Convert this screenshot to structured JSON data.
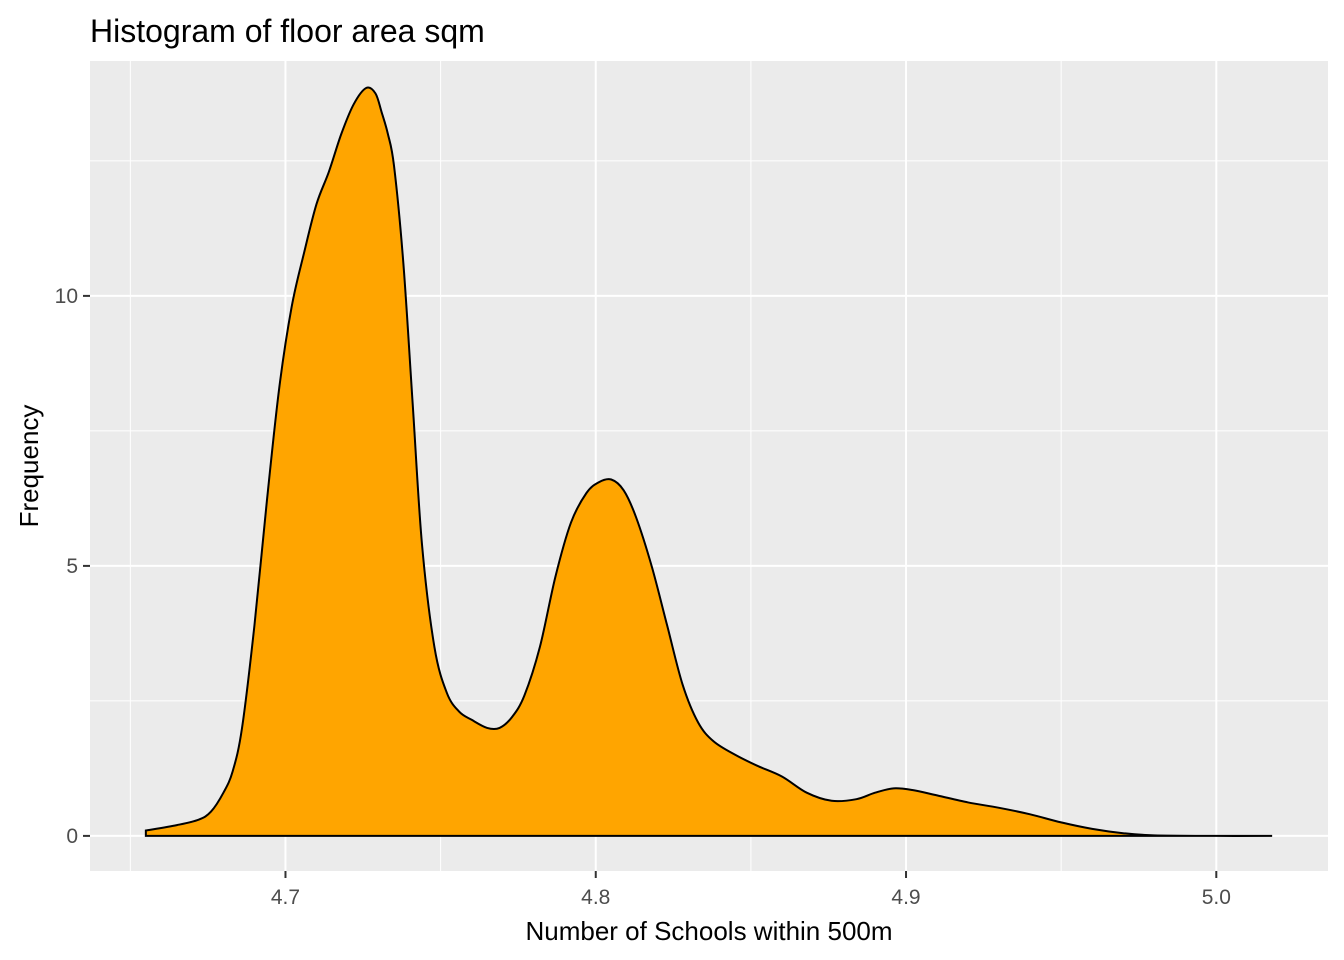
{
  "chart_data": {
    "type": "area",
    "title": "Histogram of floor area sqm",
    "xlabel": "Number of Schools within 500m",
    "ylabel": "Frequency",
    "xlim": [
      4.637,
      5.036
    ],
    "ylim": [
      -0.65,
      14.35
    ],
    "x_ticks": [
      4.7,
      4.8,
      4.9,
      5.0
    ],
    "x_tick_labels": [
      "4.7",
      "4.8",
      "4.9",
      "5.0"
    ],
    "y_ticks": [
      0,
      5,
      10
    ],
    "y_tick_labels": [
      "0",
      "5",
      "10"
    ],
    "grid": true,
    "legend": "none",
    "colors": {
      "panel": "#ebebeb",
      "grid": "#ffffff",
      "fill": "#ffa500",
      "outline": "#000000",
      "tick": "#333333"
    },
    "series": [
      {
        "x": [
          4.655,
          4.665,
          4.672,
          4.676,
          4.68,
          4.683,
          4.686,
          4.69,
          4.694,
          4.698,
          4.702,
          4.706,
          4.71,
          4.714,
          4.718,
          4.722,
          4.726,
          4.729,
          4.731,
          4.733,
          4.735,
          4.738,
          4.741,
          4.744,
          4.748,
          4.752,
          4.756,
          4.76,
          4.765,
          4.769,
          4.773,
          4.777,
          4.782,
          4.787,
          4.792,
          4.797,
          4.801,
          4.805,
          4.809,
          4.813,
          4.818,
          4.823,
          4.828,
          4.833,
          4.838,
          4.845,
          4.852,
          4.86,
          4.868,
          4.876,
          4.884,
          4.89,
          4.896,
          4.902,
          4.91,
          4.92,
          4.93,
          4.94,
          4.95,
          4.96,
          4.97,
          4.98,
          5.0,
          5.018
        ],
        "y": [
          0.1,
          0.2,
          0.3,
          0.45,
          0.8,
          1.2,
          2.0,
          3.9,
          6.2,
          8.3,
          9.8,
          10.8,
          11.7,
          12.3,
          13.0,
          13.55,
          13.85,
          13.75,
          13.4,
          13.0,
          12.4,
          10.6,
          8.0,
          5.4,
          3.5,
          2.65,
          2.3,
          2.15,
          2.0,
          2.0,
          2.2,
          2.6,
          3.5,
          4.8,
          5.8,
          6.35,
          6.55,
          6.6,
          6.4,
          5.9,
          5.0,
          3.9,
          2.8,
          2.1,
          1.75,
          1.5,
          1.3,
          1.1,
          0.8,
          0.65,
          0.68,
          0.8,
          0.88,
          0.85,
          0.75,
          0.62,
          0.52,
          0.4,
          0.25,
          0.13,
          0.05,
          0.01,
          0.0,
          0.0
        ]
      }
    ]
  }
}
